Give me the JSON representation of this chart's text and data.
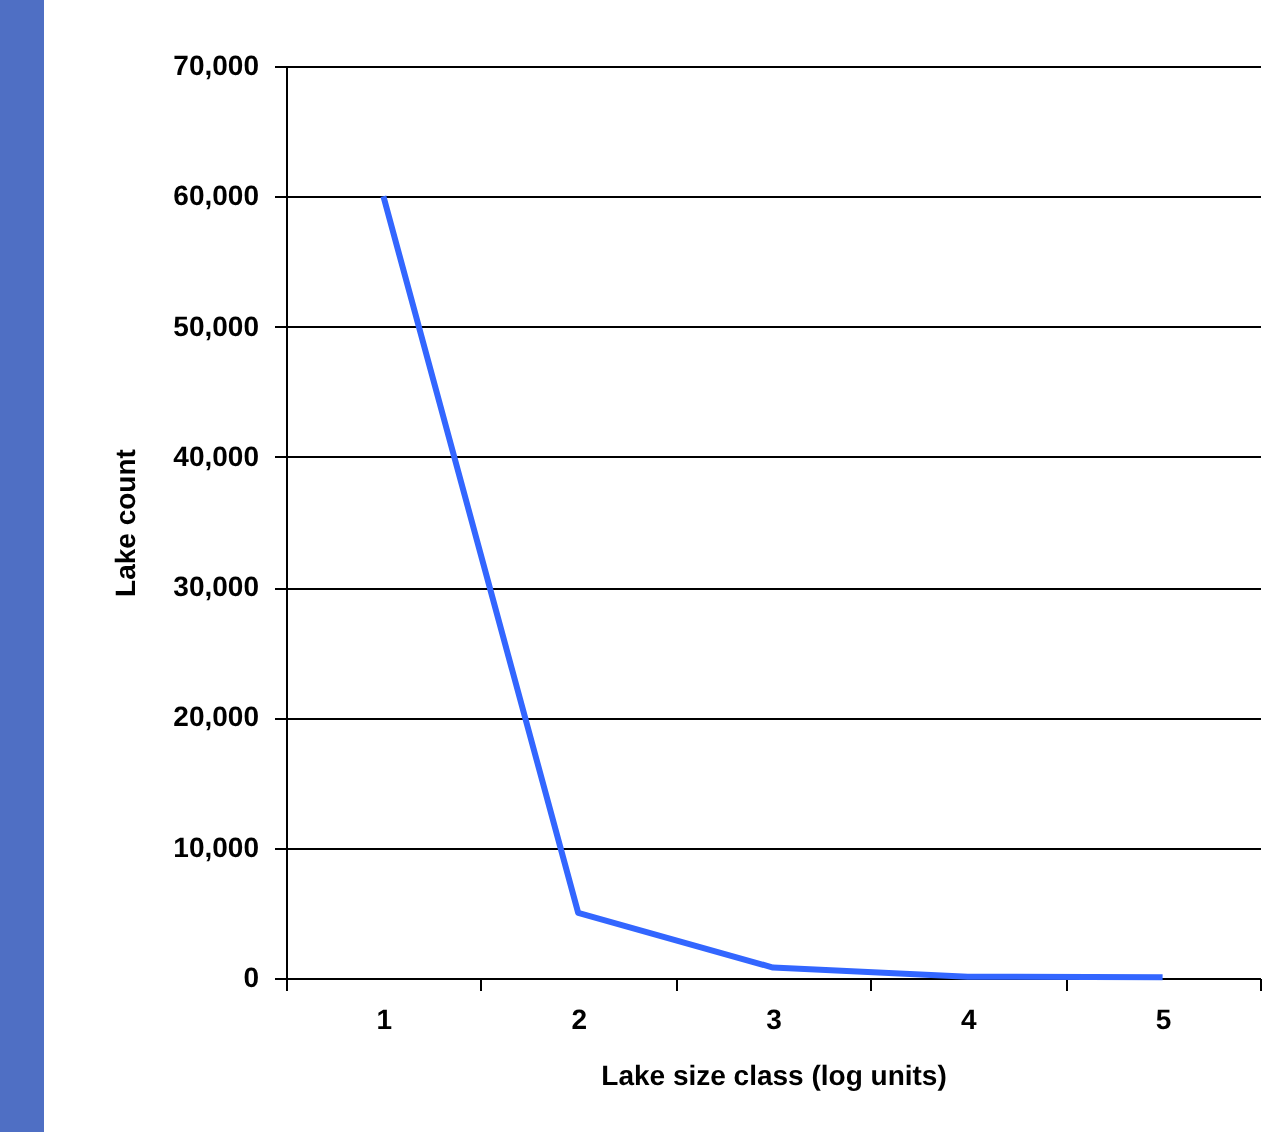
{
  "chart_data": {
    "type": "line",
    "xlabel": "Lake size class (log units)",
    "ylabel": "Lake count",
    "categories": [
      "1",
      "2",
      "3",
      "4",
      "5"
    ],
    "series": [
      {
        "color": "#3366ff",
        "values": [
          60000,
          5000,
          800,
          100,
          50
        ]
      }
    ],
    "ylim": [
      0,
      70000
    ],
    "yticks": [
      {
        "value": 0,
        "label": "0"
      },
      {
        "value": 10000,
        "label": "10,000"
      },
      {
        "value": 20000,
        "label": "20,000"
      },
      {
        "value": 30000,
        "label": "30,000"
      },
      {
        "value": 40000,
        "label": "40,000"
      },
      {
        "value": 50000,
        "label": "50,000"
      },
      {
        "value": 60000,
        "label": "60,000"
      },
      {
        "value": 70000,
        "label": "70,000"
      }
    ],
    "grid": "y",
    "marker": "none",
    "line_style": "solid",
    "legend": false
  }
}
